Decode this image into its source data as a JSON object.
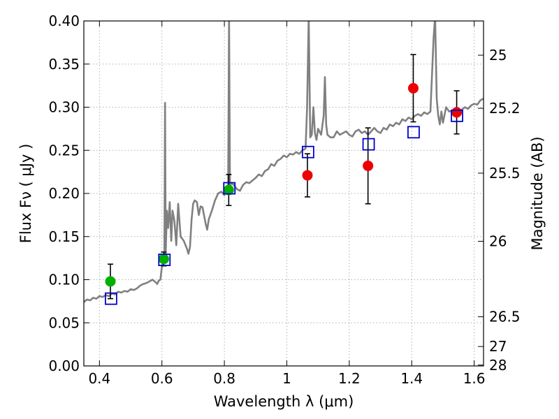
{
  "chart_data": {
    "type": "scatter",
    "xlabel": "Wavelength  λ (μm)",
    "ylabel": "Flux  Fν  ( μJy )",
    "y2label": "Magnitude (AB)",
    "xlim": [
      0.35,
      1.63
    ],
    "ylim": [
      0.0,
      0.4
    ],
    "grid": true,
    "x_ticks": [
      0.4,
      0.6,
      0.8,
      1.0,
      1.2,
      1.4,
      1.6
    ],
    "x_tick_labels": [
      "0.4",
      "0.6",
      "0.8",
      "1",
      "1.2",
      "1.4",
      "1.6"
    ],
    "y_ticks": [
      0.0,
      0.05,
      0.1,
      0.15,
      0.2,
      0.25,
      0.3,
      0.35,
      0.4
    ],
    "y_tick_labels": [
      "0.00",
      "0.05",
      "0.10",
      "0.15",
      "0.20",
      "0.25",
      "0.30",
      "0.35",
      "0.40"
    ],
    "y2_ticks": [
      {
        "flux": 0.001,
        "label": "28"
      },
      {
        "flux": 0.0225,
        "label": "27"
      },
      {
        "flux": 0.057,
        "label": "26.5"
      },
      {
        "flux": 0.1445,
        "label": "26"
      },
      {
        "flux": 0.2235,
        "label": "25.5"
      },
      {
        "flux": 0.2987,
        "label": "25.2"
      },
      {
        "flux": 0.3603,
        "label": "25"
      }
    ],
    "colors": {
      "spectrum": "#808080",
      "green_points": "#00b000",
      "red_points": "#ee0000",
      "model_squares": "#0000cc",
      "error_bars": "#000000",
      "grid": "#b0b0b0"
    },
    "series": [
      {
        "kind": "spectrum-line",
        "points": [
          [
            0.35,
            0.074
          ],
          [
            0.36,
            0.077
          ],
          [
            0.37,
            0.076
          ],
          [
            0.38,
            0.079
          ],
          [
            0.39,
            0.078
          ],
          [
            0.4,
            0.081
          ],
          [
            0.41,
            0.08
          ],
          [
            0.42,
            0.082
          ],
          [
            0.43,
            0.081
          ],
          [
            0.44,
            0.084
          ],
          [
            0.45,
            0.083
          ],
          [
            0.46,
            0.086
          ],
          [
            0.47,
            0.085
          ],
          [
            0.48,
            0.087
          ],
          [
            0.49,
            0.086
          ],
          [
            0.5,
            0.089
          ],
          [
            0.51,
            0.088
          ],
          [
            0.52,
            0.09
          ],
          [
            0.53,
            0.093
          ],
          [
            0.54,
            0.095
          ],
          [
            0.55,
            0.096
          ],
          [
            0.56,
            0.098
          ],
          [
            0.57,
            0.1
          ],
          [
            0.58,
            0.097
          ],
          [
            0.585,
            0.095
          ],
          [
            0.59,
            0.099
          ],
          [
            0.595,
            0.1
          ],
          [
            0.6,
            0.115
          ],
          [
            0.603,
            0.122
          ],
          [
            0.605,
            0.128
          ],
          [
            0.608,
            0.127
          ],
          [
            0.61,
            0.305
          ],
          [
            0.612,
            0.13
          ],
          [
            0.616,
            0.18
          ],
          [
            0.62,
            0.16
          ],
          [
            0.625,
            0.19
          ],
          [
            0.63,
            0.145
          ],
          [
            0.634,
            0.18
          ],
          [
            0.64,
            0.168
          ],
          [
            0.646,
            0.14
          ],
          [
            0.652,
            0.188
          ],
          [
            0.66,
            0.15
          ],
          [
            0.67,
            0.145
          ],
          [
            0.68,
            0.136
          ],
          [
            0.685,
            0.13
          ],
          [
            0.69,
            0.138
          ],
          [
            0.695,
            0.17
          ],
          [
            0.7,
            0.188
          ],
          [
            0.705,
            0.192
          ],
          [
            0.712,
            0.19
          ],
          [
            0.718,
            0.175
          ],
          [
            0.724,
            0.185
          ],
          [
            0.73,
            0.184
          ],
          [
            0.74,
            0.165
          ],
          [
            0.745,
            0.158
          ],
          [
            0.75,
            0.17
          ],
          [
            0.76,
            0.18
          ],
          [
            0.77,
            0.192
          ],
          [
            0.78,
            0.2
          ],
          [
            0.79,
            0.202
          ],
          [
            0.8,
            0.198
          ],
          [
            0.806,
            0.205
          ],
          [
            0.812,
            0.208
          ],
          [
            0.815,
            0.405
          ],
          [
            0.818,
            0.208
          ],
          [
            0.822,
            0.212
          ],
          [
            0.83,
            0.21
          ],
          [
            0.84,
            0.205
          ],
          [
            0.85,
            0.203
          ],
          [
            0.86,
            0.21
          ],
          [
            0.87,
            0.213
          ],
          [
            0.88,
            0.212
          ],
          [
            0.89,
            0.215
          ],
          [
            0.9,
            0.218
          ],
          [
            0.91,
            0.222
          ],
          [
            0.92,
            0.22
          ],
          [
            0.93,
            0.226
          ],
          [
            0.94,
            0.228
          ],
          [
            0.95,
            0.234
          ],
          [
            0.96,
            0.232
          ],
          [
            0.97,
            0.238
          ],
          [
            0.98,
            0.24
          ],
          [
            0.99,
            0.244
          ],
          [
            1.0,
            0.242
          ],
          [
            1.01,
            0.246
          ],
          [
            1.02,
            0.245
          ],
          [
            1.03,
            0.248
          ],
          [
            1.04,
            0.246
          ],
          [
            1.05,
            0.25
          ],
          [
            1.06,
            0.252
          ],
          [
            1.065,
            0.3
          ],
          [
            1.07,
            0.405
          ],
          [
            1.075,
            0.265
          ],
          [
            1.08,
            0.268
          ],
          [
            1.085,
            0.3
          ],
          [
            1.09,
            0.27
          ],
          [
            1.095,
            0.262
          ],
          [
            1.1,
            0.275
          ],
          [
            1.11,
            0.268
          ],
          [
            1.118,
            0.29
          ],
          [
            1.122,
            0.335
          ],
          [
            1.126,
            0.28
          ],
          [
            1.13,
            0.268
          ],
          [
            1.14,
            0.265
          ],
          [
            1.15,
            0.265
          ],
          [
            1.16,
            0.272
          ],
          [
            1.17,
            0.268
          ],
          [
            1.18,
            0.27
          ],
          [
            1.19,
            0.272
          ],
          [
            1.2,
            0.268
          ],
          [
            1.21,
            0.266
          ],
          [
            1.22,
            0.272
          ],
          [
            1.23,
            0.274
          ],
          [
            1.24,
            0.27
          ],
          [
            1.25,
            0.272
          ],
          [
            1.26,
            0.268
          ],
          [
            1.27,
            0.272
          ],
          [
            1.28,
            0.276
          ],
          [
            1.29,
            0.272
          ],
          [
            1.3,
            0.27
          ],
          [
            1.31,
            0.276
          ],
          [
            1.32,
            0.274
          ],
          [
            1.33,
            0.28
          ],
          [
            1.34,
            0.278
          ],
          [
            1.35,
            0.282
          ],
          [
            1.36,
            0.28
          ],
          [
            1.37,
            0.286
          ],
          [
            1.38,
            0.284
          ],
          [
            1.39,
            0.288
          ],
          [
            1.4,
            0.286
          ],
          [
            1.41,
            0.29
          ],
          [
            1.42,
            0.292
          ],
          [
            1.43,
            0.29
          ],
          [
            1.44,
            0.294
          ],
          [
            1.45,
            0.292
          ],
          [
            1.46,
            0.295
          ],
          [
            1.47,
            0.38
          ],
          [
            1.475,
            0.405
          ],
          [
            1.48,
            0.31
          ],
          [
            1.485,
            0.29
          ],
          [
            1.49,
            0.28
          ],
          [
            1.495,
            0.295
          ],
          [
            1.5,
            0.282
          ],
          [
            1.51,
            0.3
          ],
          [
            1.52,
            0.295
          ],
          [
            1.53,
            0.296
          ],
          [
            1.54,
            0.295
          ],
          [
            1.55,
            0.296
          ],
          [
            1.56,
            0.297
          ],
          [
            1.57,
            0.3
          ],
          [
            1.58,
            0.298
          ],
          [
            1.59,
            0.302
          ],
          [
            1.6,
            0.304
          ],
          [
            1.61,
            0.303
          ],
          [
            1.62,
            0.308
          ],
          [
            1.63,
            0.31
          ]
        ]
      },
      {
        "kind": "green-points",
        "points": [
          {
            "x": 0.435,
            "y": 0.098,
            "err": 0.02
          },
          {
            "x": 0.606,
            "y": 0.124,
            "err": 0.008
          },
          {
            "x": 0.814,
            "y": 0.204,
            "err": 0.018
          }
        ]
      },
      {
        "kind": "red-points",
        "points": [
          {
            "x": 1.066,
            "y": 0.221,
            "err": 0.025
          },
          {
            "x": 1.26,
            "y": 0.232,
            "err": 0.044
          },
          {
            "x": 1.405,
            "y": 0.322,
            "err": 0.039
          },
          {
            "x": 1.544,
            "y": 0.294,
            "err": 0.025
          }
        ]
      },
      {
        "kind": "model-squares",
        "points": [
          {
            "x": 0.437,
            "y": 0.078
          },
          {
            "x": 0.608,
            "y": 0.123
          },
          {
            "x": 0.816,
            "y": 0.206
          },
          {
            "x": 1.068,
            "y": 0.248
          },
          {
            "x": 1.262,
            "y": 0.257
          },
          {
            "x": 1.406,
            "y": 0.271
          },
          {
            "x": 1.545,
            "y": 0.29
          }
        ]
      }
    ]
  }
}
